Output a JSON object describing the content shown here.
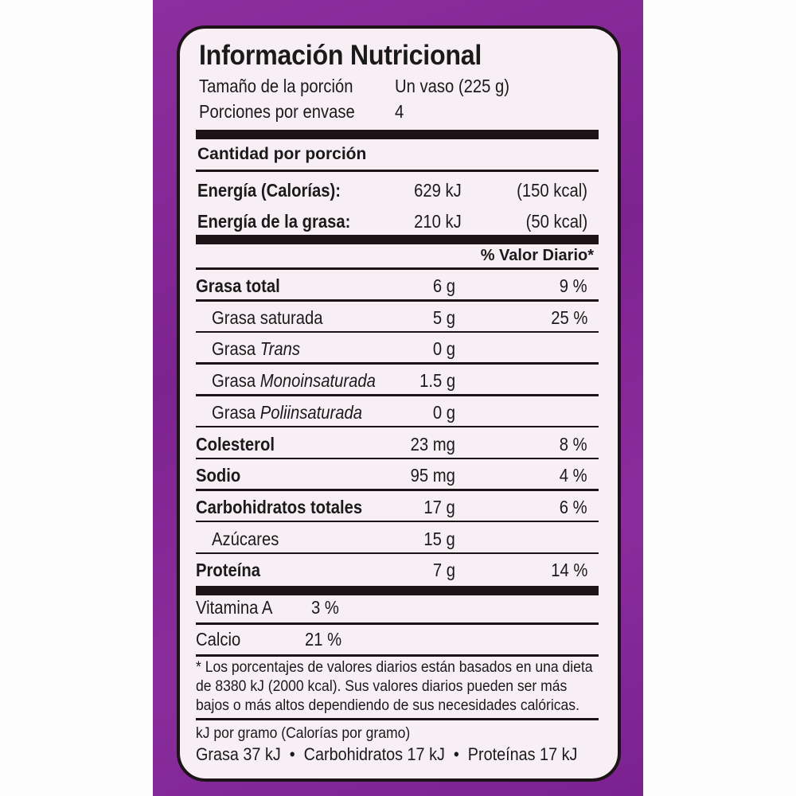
{
  "title": "Información Nutricional",
  "serving_size": {
    "label": "Tamaño de la porción",
    "value": "Un vaso (225 g)"
  },
  "servings": {
    "label": "Porciones por envase",
    "value": "4"
  },
  "amount_per_serving": "Cantidad por porción",
  "energy": [
    {
      "label": "Energía (Calorías):",
      "kj": "629 kJ",
      "kcal": "(150 kcal)"
    },
    {
      "label": "Energía de la grasa:",
      "kj": "210 kJ",
      "kcal": "(50 kcal)"
    }
  ],
  "dv_header": "% Valor Diario*",
  "nutrients": [
    {
      "label": "Grasa total",
      "amount": "6 g",
      "dv": "9 %",
      "bold": true
    },
    {
      "label": "Grasa saturada",
      "amount": "5 g",
      "dv": "25 %"
    },
    {
      "label": "Grasa ",
      "italic": "Trans",
      "amount": "0 g",
      "dv": ""
    },
    {
      "label": "Grasa ",
      "italic": "Monoinsaturada",
      "amount": "1.5 g",
      "dv": ""
    },
    {
      "label": "Grasa ",
      "italic": "Poliinsaturada",
      "amount": "0 g",
      "dv": ""
    },
    {
      "label": "Colesterol",
      "amount": "23 mg",
      "dv": "8 %",
      "bold": true
    },
    {
      "label": "Sodio",
      "amount": "95 mg",
      "dv": "4 %",
      "bold": true
    },
    {
      "label": "Carbohidratos totales",
      "amount": "17 g",
      "dv": "6 %",
      "bold": true
    },
    {
      "label": "Azúcares",
      "amount": "15 g",
      "dv": ""
    },
    {
      "label": "Proteína",
      "amount": "7 g",
      "dv": "14 %",
      "bold": true
    }
  ],
  "vitamins": [
    {
      "label": "Vitamina A",
      "value": "3 %"
    },
    {
      "label": "Calcio",
      "value": "21 %"
    }
  ],
  "footnote": [
    "* Los porcentajes de valores diarios están basados en una dieta",
    "de 8380 kJ (2000 kcal). Sus valores diarios pueden ser más",
    "bajos o más altos dependiendo de sus necesidades calóricas."
  ],
  "per_gram_title": "kJ por gramo (Calorías por gramo)",
  "per_gram": "Grasa 37 kJ  •  Carbohidratos 17 kJ  •  Proteínas 17 kJ",
  "colors": {
    "package": "#8a2d9c",
    "label_bg": "#f8eff5",
    "ink": "#1d1418"
  }
}
